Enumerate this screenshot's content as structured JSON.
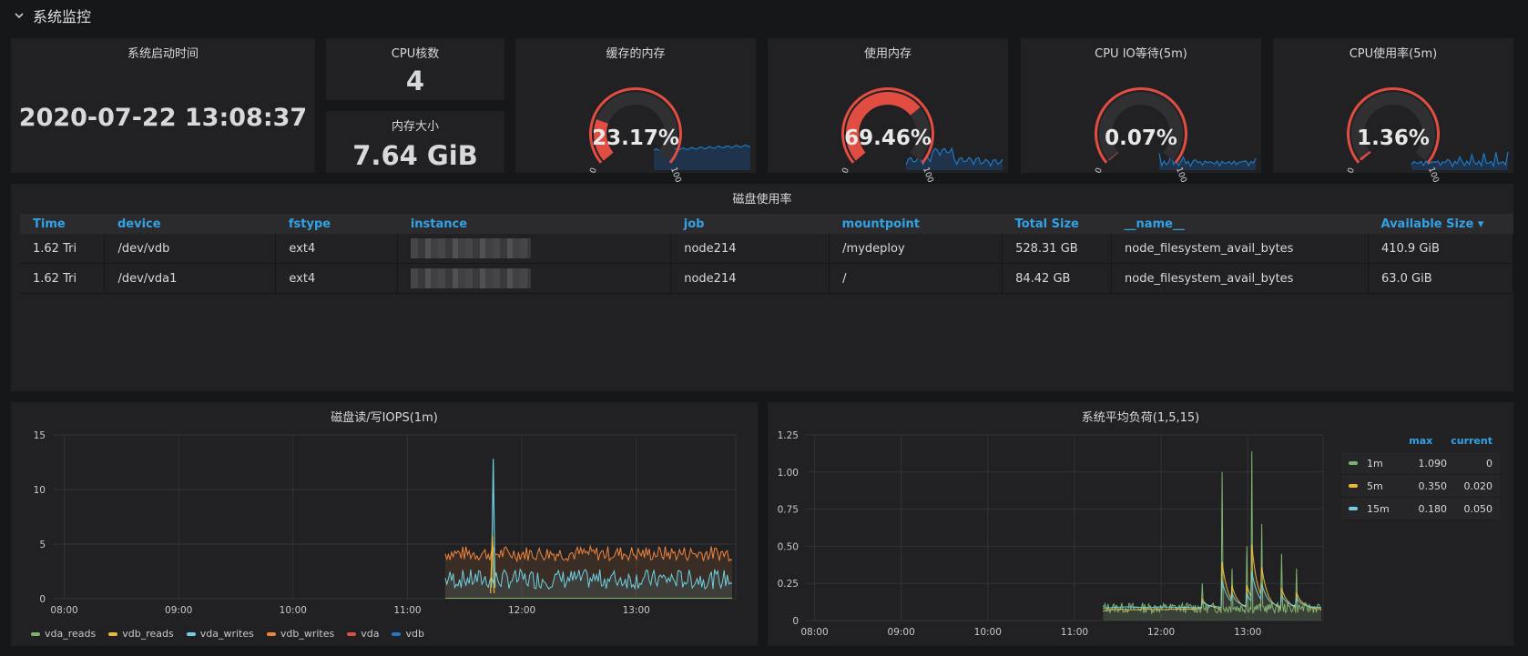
{
  "row": {
    "title": "系统监控"
  },
  "stats": {
    "uptime": {
      "title": "系统启动时间",
      "value": "2020-07-22 13:08:37"
    },
    "cpu_cores": {
      "title": "CPU核数",
      "value": "4"
    },
    "mem_size": {
      "title": "内存大小",
      "value": "7.64 GiB"
    }
  },
  "gauges": [
    {
      "title": "缓存的内存",
      "value": "23.17%",
      "fraction": 0.2317,
      "min_label": "0",
      "max_label": "100"
    },
    {
      "title": "使用内存",
      "value": "69.46%",
      "fraction": 0.6946,
      "min_label": "0",
      "max_label": "100"
    },
    {
      "title": "CPU IO等待(5m)",
      "value": "0.07%",
      "fraction": 0.0007,
      "min_label": "0",
      "max_label": "100"
    },
    {
      "title": "CPU使用率(5m)",
      "value": "1.36%",
      "fraction": 0.0136,
      "min_label": "0",
      "max_label": "100"
    }
  ],
  "disk_table": {
    "title": "磁盘使用率",
    "columns": [
      "Time",
      "device",
      "fstype",
      "instance",
      "job",
      "mountpoint",
      "Total Size",
      "__name__",
      "Available Size"
    ],
    "sort_indicator": "▾",
    "rows": [
      [
        "1.62 Tri",
        "/dev/vdb",
        "ext4",
        "",
        "node214",
        "/mydeploy",
        "528.31 GB",
        "node_filesystem_avail_bytes",
        "410.9 GiB"
      ],
      [
        "1.62 Tri",
        "/dev/vda1",
        "ext4",
        "",
        "node214",
        "/",
        "84.42 GB",
        "node_filesystem_avail_bytes",
        "63.0 GiB"
      ]
    ]
  },
  "chart_data": [
    {
      "type": "line",
      "title": "磁盘读/写IOPS(1m)",
      "x_ticks": [
        "08:00",
        "09:00",
        "10:00",
        "11:00",
        "12:00",
        "13:00"
      ],
      "y_ticks": [
        "0",
        "5",
        "10",
        "15"
      ],
      "ylim": [
        0,
        15
      ],
      "xlim_hours": [
        7.9,
        13.87
      ],
      "series": [
        {
          "name": "vda_reads",
          "color": "#7eb26d"
        },
        {
          "name": "vdb_reads",
          "color": "#eab839"
        },
        {
          "name": "vda_writes",
          "color": "#6ed0e0"
        },
        {
          "name": "vdb_writes",
          "color": "#ef843c"
        },
        {
          "name": "vda",
          "color": "#e24d42"
        },
        {
          "name": "vdb",
          "color": "#1f78c1"
        }
      ],
      "data_start_hour": 11.33,
      "vdb_writes_typical": 4.0,
      "vda_writes_typical": 1.7,
      "spike_hour": 11.75,
      "spike_value": 12.8
    },
    {
      "type": "line",
      "title": "系统平均负荷(1,5,15)",
      "x_ticks": [
        "08:00",
        "09:00",
        "10:00",
        "11:00",
        "12:00",
        "13:00"
      ],
      "y_ticks": [
        "0",
        "0.25",
        "0.50",
        "0.75",
        "1.00",
        "1.25"
      ],
      "ylim": [
        0,
        1.25
      ],
      "xlim_hours": [
        7.9,
        13.87
      ],
      "legend_headers": {
        "max": "max",
        "current": "current"
      },
      "series": [
        {
          "name": "1m",
          "color": "#7eb26d",
          "max": "1.090",
          "current": "0"
        },
        {
          "name": "5m",
          "color": "#eab839",
          "max": "0.350",
          "current": "0.020"
        },
        {
          "name": "15m",
          "color": "#6ed0e0",
          "max": "0.180",
          "current": "0.050"
        }
      ],
      "data_start_hour": 11.33
    }
  ]
}
